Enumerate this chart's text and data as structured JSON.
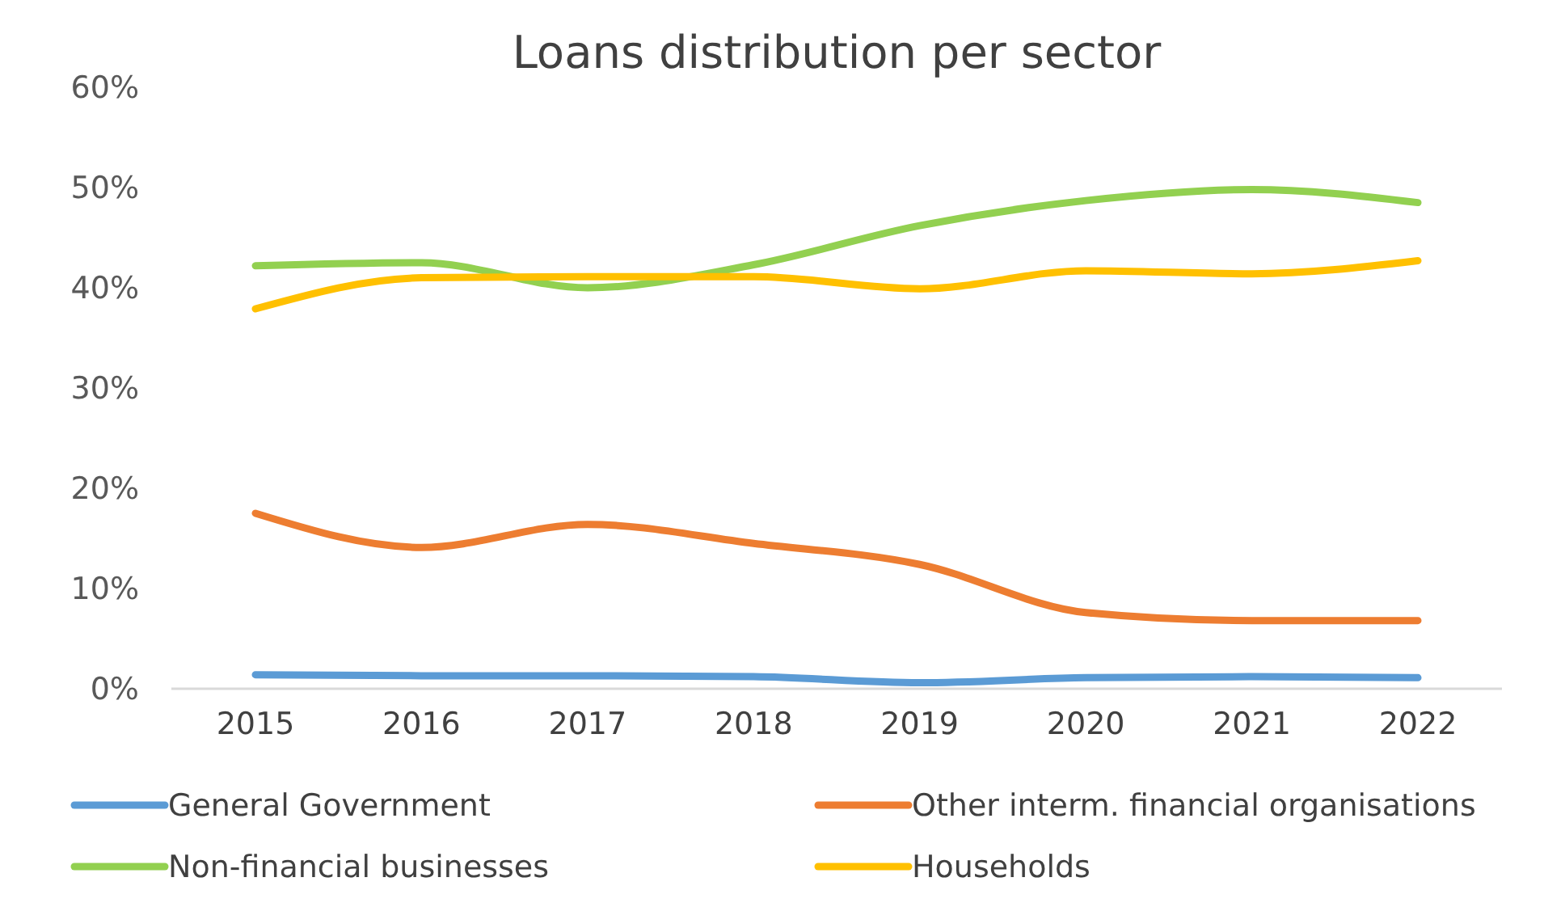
{
  "chart_data": {
    "type": "line",
    "title": "Loans distribution per sector",
    "categories": [
      "2015",
      "2016",
      "2017",
      "2018",
      "2019",
      "2020",
      "2021",
      "2022"
    ],
    "series": [
      {
        "name": "General Government",
        "color": "#5b9bd5",
        "values": [
          1.4,
          1.3,
          1.3,
          1.2,
          0.6,
          1.1,
          1.2,
          1.1
        ]
      },
      {
        "name": "Other interm. financial organisations",
        "color": "#ed7d31",
        "values": [
          17.5,
          14.1,
          16.4,
          14.5,
          12.4,
          7.6,
          6.8,
          6.8
        ]
      },
      {
        "name": "Non-financial businesses",
        "color": "#92d050",
        "values": [
          42.2,
          42.5,
          40.0,
          42.3,
          46.2,
          48.7,
          49.8,
          48.5
        ]
      },
      {
        "name": "Households",
        "color": "#ffc000",
        "values": [
          37.9,
          41.0,
          41.1,
          41.1,
          39.9,
          41.7,
          41.4,
          42.7
        ]
      }
    ],
    "ylim": [
      0,
      60
    ],
    "yticks": [
      {
        "value": 0,
        "label": "0%"
      },
      {
        "value": 10,
        "label": "10%"
      },
      {
        "value": 20,
        "label": "20%"
      },
      {
        "value": 30,
        "label": "30%"
      },
      {
        "value": 40,
        "label": "40%"
      },
      {
        "value": 50,
        "label": "50%"
      },
      {
        "value": 60,
        "label": "60%"
      }
    ],
    "legend": "bottom",
    "grid": false,
    "marker": "none",
    "line_style": "solid"
  }
}
